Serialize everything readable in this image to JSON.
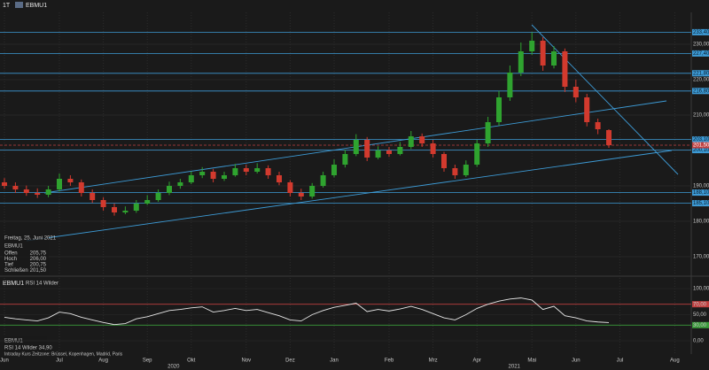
{
  "chart_data": {
    "type": "candlestick",
    "interval": "1T",
    "title": "EBMU1",
    "categories": [
      "Jun",
      null,
      null,
      null,
      null,
      "Jul",
      null,
      null,
      null,
      "Aug",
      null,
      null,
      null,
      "Sep",
      null,
      null,
      null,
      "Okt",
      null,
      null,
      null,
      null,
      "Nov",
      null,
      null,
      null,
      "Dez",
      null,
      null,
      null,
      "Jan",
      null,
      null,
      null,
      null,
      "Feb",
      null,
      null,
      null,
      "Mrz",
      null,
      null,
      null,
      "Apr",
      null,
      null,
      null,
      null,
      "Mai",
      null,
      null,
      null,
      "Jun",
      null,
      null,
      null,
      "Jul",
      null,
      null,
      null,
      null,
      "Aug",
      null
    ],
    "years": [
      "2020",
      "2021"
    ],
    "open": [
      191,
      190,
      189,
      188,
      187.5,
      189,
      192,
      191,
      188,
      186,
      184,
      182.5,
      183,
      185,
      186,
      188,
      190,
      191,
      193,
      194,
      192,
      193,
      195,
      194,
      195,
      193,
      191,
      188,
      187,
      190,
      193,
      196,
      199,
      203,
      198,
      200,
      199,
      201,
      204,
      202,
      199,
      195,
      193,
      196,
      202,
      208,
      215,
      222,
      228,
      231,
      224,
      228,
      218,
      215,
      208,
      205.75,
      null,
      null,
      null,
      null,
      null,
      null,
      null
    ],
    "high": [
      192.2,
      191,
      190.1,
      189.3,
      190,
      193.5,
      193,
      191.8,
      189,
      186.8,
      185,
      184.2,
      186,
      187.4,
      189,
      191.2,
      192,
      194.1,
      195.3,
      194.8,
      194,
      196.2,
      196,
      196.4,
      195.8,
      194,
      191.6,
      189.2,
      190.8,
      194,
      197.5,
      200.2,
      204.6,
      203.8,
      201.2,
      201,
      202.4,
      205.5,
      204.8,
      203,
      199.6,
      196,
      197.2,
      203,
      209.5,
      216.8,
      224,
      230.5,
      233.4,
      232,
      229.5,
      228.8,
      220,
      216,
      209,
      206,
      null,
      null,
      null,
      null,
      null,
      null,
      null
    ],
    "low": [
      189.2,
      188,
      187.2,
      186.6,
      186.8,
      188.4,
      190,
      187,
      185.2,
      183,
      181.6,
      182,
      182.4,
      184.6,
      185.5,
      187.4,
      189.2,
      190.5,
      192.2,
      191,
      191.4,
      192.6,
      193,
      193.5,
      192,
      190.2,
      187,
      186,
      186.4,
      189.5,
      192.4,
      195.2,
      198.4,
      197,
      197.5,
      198.2,
      198.6,
      200.4,
      201,
      198,
      194,
      192,
      192.5,
      195.4,
      201,
      207,
      214,
      221,
      227,
      222.5,
      223.2,
      216.5,
      213.6,
      206.8,
      204.6,
      200.75,
      null,
      null,
      null,
      null,
      null,
      null,
      null
    ],
    "close": [
      190,
      189,
      188,
      187.5,
      189,
      192,
      191,
      188,
      186,
      184,
      182.5,
      183,
      185,
      186,
      188,
      190,
      191,
      193,
      194,
      192,
      193,
      195,
      194,
      195,
      193,
      191,
      188,
      187,
      190,
      193,
      196,
      199,
      203,
      198,
      200,
      199,
      201,
      204,
      202,
      199,
      195,
      193,
      196,
      202,
      208,
      215,
      222,
      228,
      231,
      224,
      228,
      218,
      215,
      208,
      206,
      201.5,
      null,
      null,
      null,
      null,
      null,
      null,
      null
    ],
    "up_color": "#2fa32f",
    "down_color": "#d23a2e",
    "ylim": [
      165,
      238
    ],
    "yticks": [
      {
        "value": 170,
        "label": "170,00"
      },
      {
        "value": 180,
        "label": "180,00"
      },
      {
        "value": 190,
        "label": "190,00"
      },
      {
        "value": 200,
        "label": "200,00"
      },
      {
        "value": 210,
        "label": "210,00"
      },
      {
        "value": 220,
        "label": "220,00"
      },
      {
        "value": 230,
        "label": "230,00"
      }
    ],
    "levels": [
      {
        "value": 233.4,
        "label": "233,40"
      },
      {
        "value": 227.4,
        "label": "227,40"
      },
      {
        "value": 221.8,
        "label": "221,80"
      },
      {
        "value": 216.8,
        "label": "216,80"
      },
      {
        "value": 203.1,
        "label": "203,10"
      },
      {
        "value": 200.1,
        "label": "200,10"
      },
      {
        "value": 188.1,
        "label": "188,10"
      },
      {
        "value": 185.1,
        "label": "185,10"
      }
    ],
    "level_color": "#3d9bd6",
    "last_price": {
      "value": 201.5,
      "label": "201,50"
    },
    "info": {
      "date": "Freitag, 25. Juni 2021",
      "symbol": "EBMU1",
      "rows": [
        [
          "Offen",
          "205,75"
        ],
        [
          "Hoch",
          "206,00"
        ],
        [
          "Tief",
          "200,75"
        ],
        [
          "Schließen",
          "201,50"
        ]
      ]
    },
    "rsi": {
      "symbol": "EBMU1",
      "title": "RSI 14 Wilder",
      "values": [
        45,
        42,
        40,
        38,
        44,
        55,
        52,
        45,
        40,
        35,
        31,
        33,
        42,
        46,
        52,
        58,
        60,
        63,
        65,
        55,
        58,
        62,
        58,
        60,
        54,
        48,
        40,
        38,
        50,
        58,
        64,
        68,
        72,
        56,
        60,
        57,
        61,
        66,
        60,
        52,
        44,
        40,
        50,
        62,
        70,
        76,
        80,
        82,
        78,
        60,
        66,
        48,
        44,
        38,
        36,
        34.9,
        null,
        null,
        null,
        null,
        null,
        null,
        null
      ],
      "ylim": [
        0,
        100
      ],
      "yticks": [
        {
          "value": 0,
          "label": "0,00"
        },
        {
          "value": 30,
          "label": "30,00"
        },
        {
          "value": 50,
          "label": "50,00"
        },
        {
          "value": 70,
          "label": "70,00"
        },
        {
          "value": 100,
          "label": "100,00"
        }
      ],
      "readout": "RSI 14 Wilder 34,90"
    },
    "footer": "Intraday Kurs  Zeitzone: Brüssel, Kopenhagen, Madrid, Paris"
  }
}
